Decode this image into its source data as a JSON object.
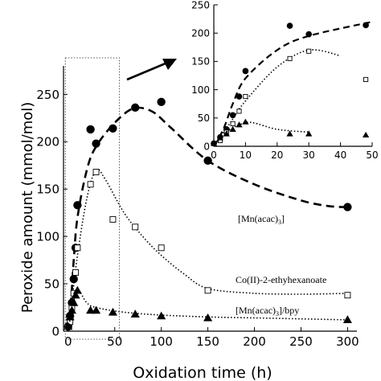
{
  "chart_data": [
    {
      "type": "scatter",
      "title": "",
      "xlabel": "Oxidation time (h)",
      "ylabel": "Peroxide amount (mmol/mol)",
      "xlim": [
        -5,
        310
      ],
      "ylim": [
        0,
        280
      ],
      "xticks": [
        0,
        50,
        100,
        150,
        200,
        250,
        300
      ],
      "yticks": [
        0,
        50,
        100,
        150,
        200,
        250
      ],
      "grid": false,
      "series": [
        {
          "name": "[Mn(acac)3]",
          "marker": "filled-circle",
          "line": "dashed",
          "points": [
            [
              0,
              5
            ],
            [
              2,
              16
            ],
            [
              4,
              30
            ],
            [
              6,
              55
            ],
            [
              8,
              88
            ],
            [
              10,
              133
            ],
            [
              24,
              213
            ],
            [
              30,
              198
            ],
            [
              48,
              214
            ],
            [
              72,
              236
            ],
            [
              100,
              242
            ],
            [
              150,
              180
            ],
            [
              300,
              131
            ]
          ],
          "fit": [
            [
              0,
              0
            ],
            [
              3,
              30
            ],
            [
              6,
              75
            ],
            [
              10,
              120
            ],
            [
              20,
              170
            ],
            [
              30,
              195
            ],
            [
              50,
              220
            ],
            [
              70,
              235
            ],
            [
              90,
              232
            ],
            [
              110,
              215
            ],
            [
              150,
              180
            ],
            [
              200,
              155
            ],
            [
              250,
              138
            ],
            [
              280,
              132
            ],
            [
              300,
              131
            ]
          ]
        },
        {
          "name": "Co(II)-2-ethyhexanoate",
          "marker": "open-square",
          "line": "dotted",
          "points": [
            [
              2,
              10
            ],
            [
              4,
              25
            ],
            [
              6,
              40
            ],
            [
              8,
              62
            ],
            [
              10,
              88
            ],
            [
              24,
              155
            ],
            [
              30,
              168
            ],
            [
              48,
              118
            ],
            [
              72,
              110
            ],
            [
              100,
              88
            ],
            [
              150,
              43
            ],
            [
              300,
              38
            ]
          ],
          "fit": [
            [
              0,
              0
            ],
            [
              5,
              40
            ],
            [
              10,
              80
            ],
            [
              20,
              140
            ],
            [
              30,
              170
            ],
            [
              40,
              160
            ],
            [
              60,
              125
            ],
            [
              80,
              100
            ],
            [
              100,
              80
            ],
            [
              125,
              60
            ],
            [
              150,
              45
            ],
            [
              200,
              40
            ],
            [
              250,
              39
            ],
            [
              300,
              40
            ]
          ]
        },
        {
          "name": "[Mn(acac)3]/bpy",
          "marker": "filled-triangle",
          "line": "dotted",
          "points": [
            [
              0,
              5
            ],
            [
              2,
              15
            ],
            [
              4,
              22
            ],
            [
              6,
              30
            ],
            [
              8,
              38
            ],
            [
              10,
              43
            ],
            [
              24,
              22
            ],
            [
              30,
              22
            ],
            [
              48,
              20
            ],
            [
              72,
              18
            ],
            [
              100,
              16
            ],
            [
              150,
              14
            ],
            [
              300,
              12
            ]
          ],
          "fit": [
            [
              0,
              0
            ],
            [
              4,
              25
            ],
            [
              8,
              38
            ],
            [
              12,
              42
            ],
            [
              20,
              30
            ],
            [
              30,
              25
            ],
            [
              60,
              20
            ],
            [
              100,
              17
            ],
            [
              150,
              15
            ],
            [
              200,
              14
            ],
            [
              250,
              13
            ],
            [
              300,
              12
            ]
          ]
        }
      ]
    },
    {
      "type": "scatter",
      "title": "",
      "xlabel": "",
      "ylabel": "",
      "xlim": [
        0,
        50
      ],
      "ylim": [
        0,
        250
      ],
      "xticks": [
        0,
        10,
        20,
        30,
        40,
        50
      ],
      "yticks": [
        0,
        50,
        100,
        150,
        200,
        250
      ],
      "grid": false,
      "series_ref": "same as main chart, zoomed to 0-50 h"
    }
  ],
  "labels": {
    "mn": "[Mn(acac)",
    "mn_sub": "3",
    "mn_close": "]",
    "co": "Co(II)-2-ethyhexanoate",
    "bpy": "[Mn(acac)",
    "bpy_sub": "3",
    "bpy_close": "]/bpy"
  }
}
